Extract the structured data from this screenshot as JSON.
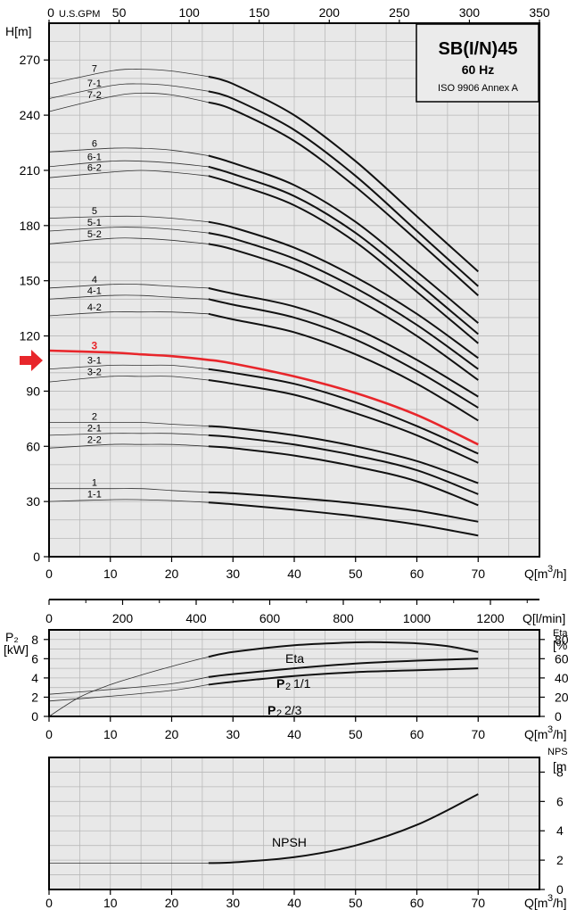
{
  "chart_data": [
    {
      "type": "line",
      "name_box": {
        "title": "SB(I/N)45",
        "freq": "60 Hz",
        "standard": "ISO 9906 Annex A"
      },
      "ylabel": "H[m]",
      "xlabel": "Q[m³/h]",
      "top_axis_label": "U.S.GPM",
      "top_axis_ticks": [
        "0",
        "50",
        "100",
        "150",
        "200",
        "250",
        "300",
        "350"
      ],
      "xlim": [
        0,
        80
      ],
      "ylim": [
        0,
        290
      ],
      "x_ticks": [
        "0",
        "10",
        "20",
        "30",
        "40",
        "50",
        "60",
        "70"
      ],
      "y_ticks": [
        "0",
        "30",
        "60",
        "90",
        "120",
        "150",
        "180",
        "210",
        "240",
        "270"
      ],
      "highlight": "3",
      "series": [
        {
          "name": "7",
          "x": [
            0,
            10,
            15,
            20,
            26,
            30,
            40,
            50,
            60,
            70
          ],
          "y": [
            257,
            264,
            265,
            264,
            261,
            257,
            240,
            215,
            185,
            155
          ]
        },
        {
          "name": "7-1",
          "x": [
            0,
            10,
            15,
            20,
            26,
            30,
            40,
            50,
            60,
            70
          ],
          "y": [
            249,
            256,
            257,
            256,
            253,
            249,
            232,
            207,
            177,
            147
          ]
        },
        {
          "name": "7-2",
          "x": [
            0,
            10,
            15,
            20,
            26,
            30,
            40,
            50,
            60,
            70
          ],
          "y": [
            242,
            250,
            252,
            251,
            247,
            243,
            226,
            201,
            172,
            142
          ]
        },
        {
          "name": "6",
          "x": [
            0,
            10,
            15,
            20,
            26,
            30,
            40,
            50,
            60,
            70
          ],
          "y": [
            220,
            222,
            222,
            221,
            218,
            214,
            202,
            182,
            155,
            127
          ]
        },
        {
          "name": "6-1",
          "x": [
            0,
            10,
            15,
            20,
            26,
            30,
            40,
            50,
            60,
            70
          ],
          "y": [
            212,
            215,
            215,
            214,
            212,
            208,
            196,
            176,
            149,
            121
          ]
        },
        {
          "name": "6-2",
          "x": [
            0,
            10,
            15,
            20,
            26,
            30,
            40,
            50,
            60,
            70
          ],
          "y": [
            206,
            209,
            210,
            209,
            207,
            203,
            191,
            171,
            144,
            116
          ]
        },
        {
          "name": "5",
          "x": [
            0,
            10,
            15,
            20,
            26,
            30,
            40,
            50,
            60,
            70
          ],
          "y": [
            184,
            185,
            185,
            184,
            182,
            179,
            168,
            152,
            132,
            108
          ]
        },
        {
          "name": "5-1",
          "x": [
            0,
            10,
            15,
            20,
            26,
            30,
            40,
            50,
            60,
            70
          ],
          "y": [
            177,
            179,
            179,
            178,
            176,
            173,
            162,
            146,
            126,
            102
          ]
        },
        {
          "name": "5-2",
          "x": [
            0,
            10,
            15,
            20,
            26,
            30,
            40,
            50,
            60,
            70
          ],
          "y": [
            170,
            173,
            173,
            172,
            170,
            167,
            156,
            140,
            120,
            96
          ]
        },
        {
          "name": "4",
          "x": [
            0,
            10,
            15,
            20,
            26,
            30,
            40,
            50,
            60,
            70
          ],
          "y": [
            146,
            148,
            148,
            147,
            146,
            143,
            136,
            124,
            107,
            87
          ]
        },
        {
          "name": "4-1",
          "x": [
            0,
            10,
            15,
            20,
            26,
            30,
            40,
            50,
            60,
            70
          ],
          "y": [
            140,
            142,
            142,
            141,
            140,
            137,
            130,
            118,
            101,
            81
          ]
        },
        {
          "name": "4-2",
          "x": [
            0,
            10,
            15,
            20,
            26,
            30,
            40,
            50,
            60,
            70
          ],
          "y": [
            131,
            133,
            133,
            133,
            132,
            129,
            122,
            110,
            94,
            74
          ]
        },
        {
          "name": "3",
          "x": [
            0,
            10,
            15,
            20,
            26,
            30,
            40,
            50,
            60,
            70
          ],
          "y": [
            112,
            111,
            110,
            109,
            107,
            105,
            98,
            89,
            77,
            61
          ]
        },
        {
          "name": "3-1",
          "x": [
            0,
            10,
            15,
            20,
            26,
            30,
            40,
            50,
            60,
            70
          ],
          "y": [
            102,
            104,
            104,
            104,
            102,
            100,
            94,
            84,
            71,
            56
          ]
        },
        {
          "name": "3-2",
          "x": [
            0,
            10,
            15,
            20,
            26,
            30,
            40,
            50,
            60,
            70
          ],
          "y": [
            95,
            98,
            98,
            98,
            96,
            94,
            88,
            78,
            66,
            51
          ]
        },
        {
          "name": "2",
          "x": [
            0,
            10,
            15,
            20,
            26,
            30,
            40,
            50,
            60,
            70
          ],
          "y": [
            73,
            73,
            73,
            72,
            71,
            70,
            66,
            60,
            52,
            40
          ]
        },
        {
          "name": "2-1",
          "x": [
            0,
            10,
            15,
            20,
            26,
            30,
            40,
            50,
            60,
            70
          ],
          "y": [
            66,
            67,
            67,
            67,
            66,
            65,
            61,
            55,
            47,
            34
          ]
        },
        {
          "name": "2-2",
          "x": [
            0,
            10,
            15,
            20,
            26,
            30,
            40,
            50,
            60,
            70
          ],
          "y": [
            59,
            61,
            61,
            61,
            60,
            59,
            55,
            49,
            41,
            28
          ]
        },
        {
          "name": "1",
          "x": [
            0,
            10,
            15,
            20,
            26,
            30,
            40,
            50,
            60,
            70
          ],
          "y": [
            37,
            37,
            37,
            36,
            35,
            34.5,
            32,
            29,
            25,
            19
          ]
        },
        {
          "name": "1-1",
          "x": [
            0,
            10,
            15,
            20,
            26,
            30,
            40,
            50,
            60,
            70
          ],
          "y": [
            30,
            31,
            31,
            30.5,
            29.5,
            28.5,
            25.5,
            22,
            17.5,
            11.5
          ]
        }
      ]
    },
    {
      "type": "axis",
      "xlabel": "Q[l/min]",
      "x_ticks": [
        "0",
        "200",
        "400",
        "600",
        "800",
        "1000",
        "1200"
      ]
    },
    {
      "type": "line",
      "ylabel_left": "P₂\n[kW]",
      "ylabel_left_line1": "P₂",
      "ylabel_left_line2": "[kW]",
      "ylabel_right_line1": "Eta",
      "ylabel_right_line2": "[%",
      "xlabel": "Q[m³/h]",
      "xlim": [
        0,
        80
      ],
      "ylim_left": [
        0,
        9
      ],
      "y_ticks_left": [
        "0",
        "2",
        "4",
        "6",
        "8"
      ],
      "y_ticks_right": [
        "0",
        "20",
        "40",
        "60",
        "80"
      ],
      "x_ticks": [
        "0",
        "10",
        "20",
        "30",
        "40",
        "50",
        "60",
        "70"
      ],
      "series": [
        {
          "name": "Eta",
          "label": "Eta",
          "x": [
            0,
            5,
            10,
            15,
            20,
            26,
            30,
            40,
            50,
            55,
            60,
            65,
            70
          ],
          "y_percent": [
            0,
            20,
            33,
            43,
            52,
            62,
            67,
            74,
            77,
            77,
            76,
            73,
            67
          ]
        },
        {
          "name": "P₂ 1/1",
          "label_p": "P",
          "label_sub": "2",
          "label_rest": "1/1",
          "x": [
            0,
            10,
            20,
            26,
            30,
            40,
            50,
            60,
            70
          ],
          "y": [
            2.3,
            2.8,
            3.4,
            4.1,
            4.4,
            5.0,
            5.5,
            5.8,
            6.0
          ]
        },
        {
          "name": "P₂ 2/3",
          "label_p": "P",
          "label_sub": "2",
          "label_rest": "2/3",
          "x": [
            0,
            10,
            20,
            26,
            30,
            40,
            50,
            60,
            70
          ],
          "y": [
            1.6,
            2.1,
            2.7,
            3.3,
            3.6,
            4.2,
            4.6,
            4.8,
            5.0
          ]
        }
      ]
    },
    {
      "type": "line",
      "ylabel_right_line1": "NPS",
      "ylabel_right_line2": "[m",
      "xlabel": "Q[m³/h]",
      "xlim": [
        0,
        80
      ],
      "ylim": [
        0,
        9
      ],
      "y_ticks_right": [
        "0",
        "2",
        "4",
        "6",
        "8"
      ],
      "x_ticks": [
        "0",
        "10",
        "20",
        "30",
        "40",
        "50",
        "60",
        "70"
      ],
      "series": [
        {
          "name": "NPSH",
          "label": "NPSH",
          "x": [
            0,
            10,
            20,
            26,
            30,
            40,
            50,
            60,
            70
          ],
          "y": [
            1.8,
            1.8,
            1.8,
            1.8,
            1.85,
            2.2,
            3.0,
            4.4,
            6.5
          ]
        }
      ]
    }
  ],
  "colors": {
    "highlight": "#e8262b",
    "grid_bg": "#e8e8e8",
    "grid_line": "#b9b9b9"
  }
}
